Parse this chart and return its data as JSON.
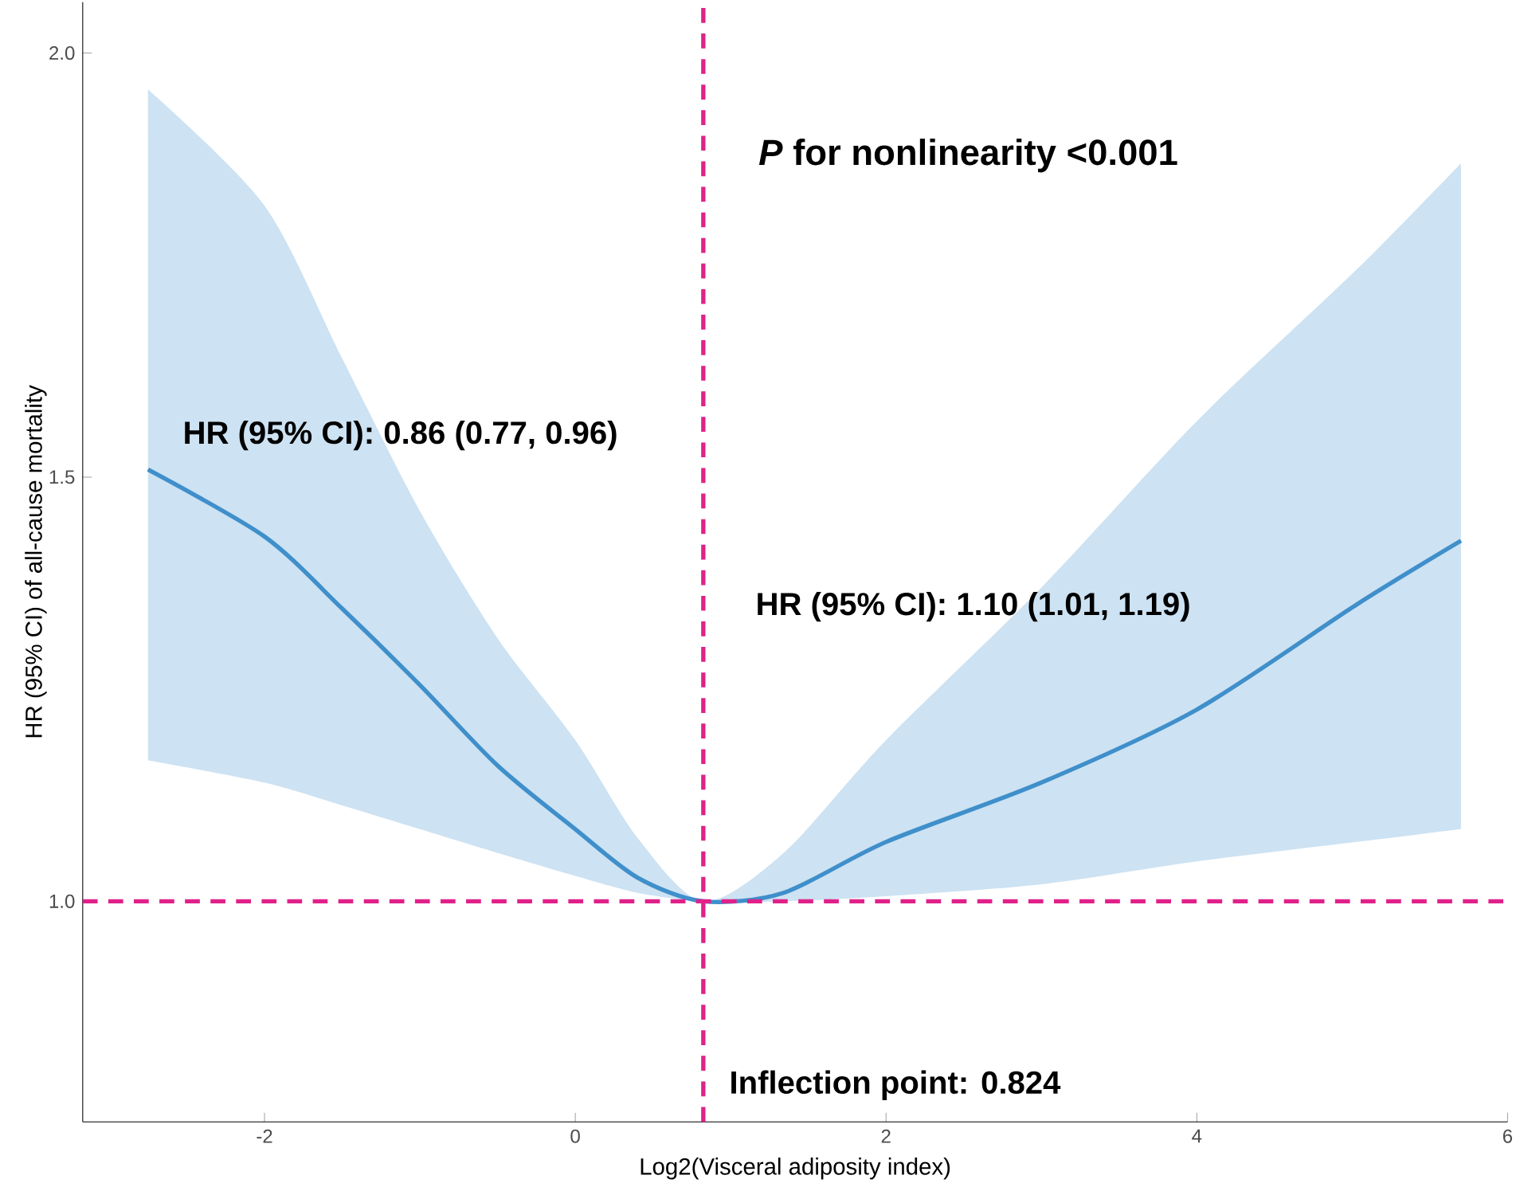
{
  "chart_data": {
    "type": "line",
    "xlabel": "Log2(Visceral adiposity index)",
    "ylabel": "HR (95% CI) of all-cause mortality",
    "annotations": [
      "*P* for nonlinearity <0.001",
      "HR (95% CI): 0.86 (0.77, 0.96)",
      "HR (95% CI): 1.10 (1.01, 1.19)"
    ],
    "x": [
      -2.75,
      -2,
      -1.5,
      -1,
      -0.5,
      0,
      0.4,
      0.824,
      1.34,
      2,
      3,
      4,
      5.03,
      5.7
    ],
    "series": [
      {
        "color": "#3f8fcb",
        "values": [
          1.509,
          1.43,
          1.345,
          1.255,
          1.16,
          1.085,
          1.028,
          1.0,
          1.01,
          1.07,
          1.14,
          1.226,
          1.35,
          1.425
        ],
        "lower": [
          1.166,
          1.14,
          1.113,
          1.085,
          1.057,
          1.03,
          1.01,
          1.0,
          1.0,
          1.006,
          1.02,
          1.047,
          1.07,
          1.085
        ],
        "upper": [
          1.957,
          1.82,
          1.64,
          1.46,
          1.31,
          1.19,
          1.075,
          1.0,
          1.057,
          1.19,
          1.37,
          1.566,
          1.745,
          1.87
        ]
      }
    ],
    "xlim": [
      -3.17,
      6.0
    ],
    "ylim": [
      0.74,
      2.06
    ],
    "xticks": [
      -2,
      0,
      2,
      4,
      6
    ],
    "yticks": [
      {
        "value": 1,
        "label": "1.0"
      },
      {
        "value": 1.5,
        "label": "1.5"
      },
      {
        "value": 2,
        "label": "2.0"
      }
    ],
    "ref_lines": [
      {
        "axis": "x",
        "value": 0.824,
        "label": "Inflection point: 0.824",
        "color": "#e0218a",
        "line_style": "dashed"
      },
      {
        "axis": "y",
        "value": 1,
        "color": "#e0218a",
        "line_style": "dashed"
      }
    ],
    "grid": false,
    "marker": "none",
    "line_style": "solid"
  }
}
